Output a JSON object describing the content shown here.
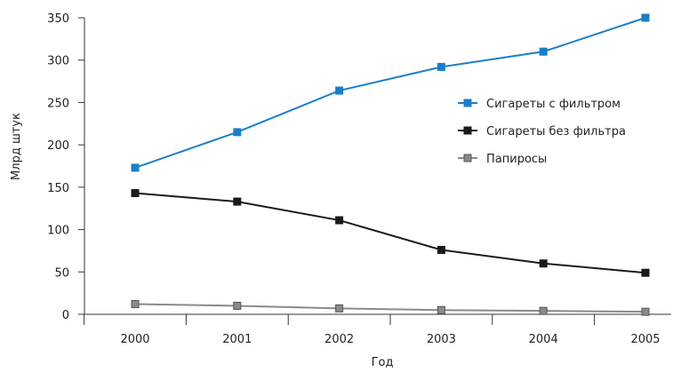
{
  "chart_data": {
    "type": "line",
    "title": "",
    "xlabel": "Год",
    "ylabel": "Млрд штук",
    "x": [
      "2000",
      "2001",
      "2002",
      "2003",
      "2004",
      "2005"
    ],
    "yticks": [
      "0",
      "50",
      "100",
      "150",
      "200",
      "250",
      "300",
      "350"
    ],
    "ylim": [
      0,
      350
    ],
    "grid": false,
    "legend_position": "right",
    "series": [
      {
        "name": "Сигареты с фильтром",
        "values": [
          173,
          215,
          264,
          292,
          310,
          350
        ],
        "color": "#1a7fc8"
      },
      {
        "name": "Сигареты без фильтра",
        "values": [
          143,
          133,
          111,
          76,
          60,
          49
        ],
        "color": "#1a1a1a"
      },
      {
        "name": "Папиросы",
        "values": [
          12,
          10,
          7,
          5,
          4,
          3
        ],
        "color": "#8a8a8a"
      }
    ]
  }
}
